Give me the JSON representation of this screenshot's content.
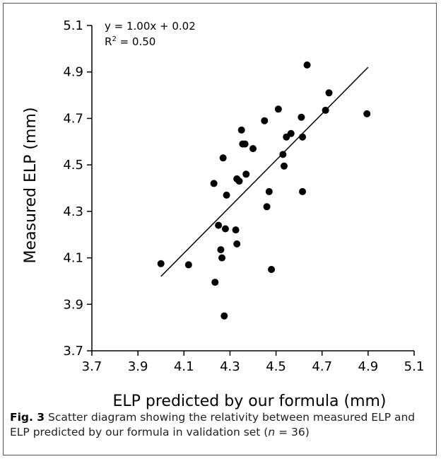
{
  "chart_data": {
    "type": "scatter",
    "xlabel": "ELP predicted by our formula (mm)",
    "ylabel": "Measured ELP (mm)",
    "xlim": [
      3.7,
      5.1
    ],
    "ylim": [
      3.7,
      5.1
    ],
    "x_ticks": [
      "3.7",
      "3.9",
      "4.1",
      "4.3",
      "4.5",
      "4.7",
      "4.9",
      "5.1"
    ],
    "y_ticks": [
      "3.7",
      "3.9",
      "4.1",
      "4.3",
      "4.5",
      "4.7",
      "4.9",
      "5.1"
    ],
    "equation": "y = 1.00x + 0.02",
    "r2_prefix": "R",
    "r2_sup": "2",
    "r2_value": " = 0.50",
    "regression": {
      "slope": 1.0,
      "intercept": 0.02,
      "x_range": [
        4.0,
        4.9
      ]
    },
    "grid": false,
    "marker_color": "#000000",
    "points": [
      {
        "x": 4.0,
        "y": 4.075
      },
      {
        "x": 4.12,
        "y": 4.07
      },
      {
        "x": 4.23,
        "y": 4.42
      },
      {
        "x": 4.235,
        "y": 3.995
      },
      {
        "x": 4.25,
        "y": 4.24
      },
      {
        "x": 4.26,
        "y": 4.135
      },
      {
        "x": 4.265,
        "y": 4.1
      },
      {
        "x": 4.27,
        "y": 4.53
      },
      {
        "x": 4.275,
        "y": 3.85
      },
      {
        "x": 4.28,
        "y": 4.225
      },
      {
        "x": 4.285,
        "y": 4.37
      },
      {
        "x": 4.325,
        "y": 4.22
      },
      {
        "x": 4.33,
        "y": 4.16
      },
      {
        "x": 4.33,
        "y": 4.44
      },
      {
        "x": 4.34,
        "y": 4.43
      },
      {
        "x": 4.35,
        "y": 4.65
      },
      {
        "x": 4.355,
        "y": 4.59
      },
      {
        "x": 4.365,
        "y": 4.59
      },
      {
        "x": 4.37,
        "y": 4.46
      },
      {
        "x": 4.4,
        "y": 4.57
      },
      {
        "x": 4.45,
        "y": 4.69
      },
      {
        "x": 4.46,
        "y": 4.32
      },
      {
        "x": 4.47,
        "y": 4.385
      },
      {
        "x": 4.48,
        "y": 4.05
      },
      {
        "x": 4.51,
        "y": 4.74
      },
      {
        "x": 4.53,
        "y": 4.545
      },
      {
        "x": 4.535,
        "y": 4.495
      },
      {
        "x": 4.545,
        "y": 4.62
      },
      {
        "x": 4.565,
        "y": 4.635
      },
      {
        "x": 4.61,
        "y": 4.705
      },
      {
        "x": 4.615,
        "y": 4.62
      },
      {
        "x": 4.615,
        "y": 4.385
      },
      {
        "x": 4.635,
        "y": 4.93
      },
      {
        "x": 4.715,
        "y": 4.735
      },
      {
        "x": 4.73,
        "y": 4.81
      },
      {
        "x": 4.895,
        "y": 4.72
      }
    ]
  },
  "caption": {
    "label": "Fig. 3",
    "text_part1": "  Scatter diagram showing the relativity between measured ELP and ELP predicted by our formula in validation set (",
    "n_symbol": "n",
    "text_part2": " = 36)"
  }
}
